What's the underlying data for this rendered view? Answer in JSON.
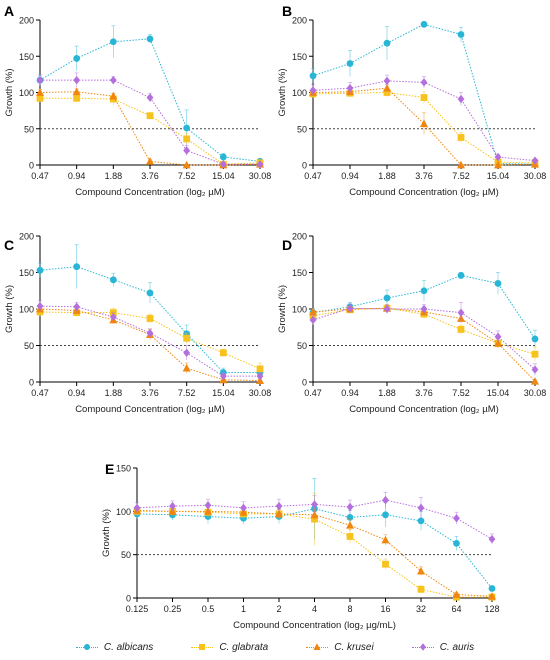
{
  "colors": {
    "albicans": "#29b6d6",
    "glabrata": "#f7c21b",
    "krusei": "#f0860f",
    "auris": "#b46fdd"
  },
  "legend": [
    {
      "key": "albicans",
      "label": "C. albicans",
      "marker": "circle"
    },
    {
      "key": "glabrata",
      "label": "C. glabrata",
      "marker": "square"
    },
    {
      "key": "krusei",
      "label": "C. krusei",
      "marker": "triangle"
    },
    {
      "key": "auris",
      "label": "C. auris",
      "marker": "diamond"
    }
  ],
  "chart_data": [
    {
      "panel": "A",
      "type": "line",
      "categories": [
        "0.47",
        "0.94",
        "1.88",
        "3.76",
        "7.52",
        "15.04",
        "30.08"
      ],
      "xlabel": "Compound Concentration (log₂ µM)",
      "ylabel": "Growth (%)",
      "ylim": [
        0,
        200
      ],
      "yticks": [
        0,
        50,
        100,
        150,
        200
      ],
      "reference_line": 50,
      "series": [
        {
          "key": "albicans",
          "name": "C. albicans",
          "values": [
            117,
            147,
            170,
            174,
            51,
            11,
            5
          ],
          "errors": [
            6,
            17,
            22,
            6,
            25,
            5,
            4
          ]
        },
        {
          "key": "glabrata",
          "name": "C. glabrata",
          "values": [
            92,
            92,
            91,
            68,
            36,
            1,
            3
          ],
          "errors": [
            5,
            5,
            8,
            4,
            8,
            2,
            2
          ]
        },
        {
          "key": "krusei",
          "name": "C. krusei",
          "values": [
            100,
            101,
            95,
            5,
            0,
            0,
            1
          ],
          "errors": [
            4,
            4,
            4,
            3,
            1,
            1,
            1
          ]
        },
        {
          "key": "auris",
          "name": "C. auris",
          "values": [
            117,
            117,
            117,
            93,
            20,
            1,
            1
          ],
          "errors": [
            8,
            10,
            5,
            6,
            7,
            2,
            1
          ]
        }
      ]
    },
    {
      "panel": "B",
      "type": "line",
      "categories": [
        "0.47",
        "0.94",
        "1.88",
        "3.76",
        "7.52",
        "15.04",
        "30.08"
      ],
      "xlabel": "Compound Concentration (log₂ µM)",
      "ylabel": "Growth (%)",
      "ylim": [
        0,
        200
      ],
      "yticks": [
        0,
        50,
        100,
        150,
        200
      ],
      "reference_line": 50,
      "series": [
        {
          "key": "albicans",
          "name": "C. albicans",
          "values": [
            123,
            140,
            168,
            194,
            180,
            2,
            1
          ],
          "errors": [
            10,
            18,
            23,
            4,
            10,
            2,
            1
          ]
        },
        {
          "key": "glabrata",
          "name": "C. glabrata",
          "values": [
            98,
            99,
            100,
            93,
            38,
            4,
            3
          ],
          "errors": [
            5,
            5,
            6,
            8,
            7,
            2,
            2
          ]
        },
        {
          "key": "krusei",
          "name": "C. krusei",
          "values": [
            100,
            101,
            106,
            57,
            0,
            0,
            1
          ],
          "errors": [
            4,
            4,
            5,
            15,
            1,
            1,
            1
          ]
        },
        {
          "key": "auris",
          "name": "C. auris",
          "values": [
            103,
            106,
            116,
            114,
            91,
            11,
            6
          ],
          "errors": [
            8,
            8,
            8,
            8,
            9,
            3,
            2
          ]
        }
      ]
    },
    {
      "panel": "C",
      "type": "line",
      "categories": [
        "0.47",
        "0.94",
        "1.88",
        "3.76",
        "7.52",
        "15.04",
        "30.08"
      ],
      "xlabel": "Compound Concentration (log₂ µM)",
      "ylabel": "Growth (%)",
      "ylim": [
        0,
        200
      ],
      "yticks": [
        0,
        50,
        100,
        150,
        200
      ],
      "reference_line": 50,
      "series": [
        {
          "key": "albicans",
          "name": "C. albicans",
          "values": [
            153,
            158,
            140,
            122,
            66,
            13,
            13
          ],
          "errors": [
            10,
            30,
            9,
            14,
            12,
            6,
            6
          ]
        },
        {
          "key": "glabrata",
          "name": "C. glabrata",
          "values": [
            96,
            95,
            95,
            87,
            60,
            40,
            18
          ],
          "errors": [
            6,
            5,
            6,
            6,
            7,
            5,
            8
          ]
        },
        {
          "key": "krusei",
          "name": "C. krusei",
          "values": [
            100,
            98,
            85,
            65,
            19,
            3,
            2
          ],
          "errors": [
            4,
            4,
            5,
            7,
            7,
            2,
            2
          ]
        },
        {
          "key": "auris",
          "name": "C. auris",
          "values": [
            104,
            103,
            89,
            67,
            40,
            8,
            8
          ],
          "errors": [
            8,
            6,
            6,
            6,
            10,
            4,
            4
          ]
        }
      ]
    },
    {
      "panel": "D",
      "type": "line",
      "categories": [
        "0.47",
        "0.94",
        "1.88",
        "3.76",
        "7.52",
        "15.04",
        "30.08"
      ],
      "xlabel": "Compound Concentration (log₂ µM)",
      "ylabel": "Growth (%)",
      "ylim": [
        0,
        200
      ],
      "yticks": [
        0,
        50,
        100,
        150,
        200
      ],
      "reference_line": 50,
      "series": [
        {
          "key": "albicans",
          "name": "C. albicans",
          "values": [
            95,
            103,
            115,
            125,
            146,
            135,
            59
          ],
          "errors": [
            6,
            6,
            11,
            14,
            4,
            15,
            12
          ]
        },
        {
          "key": "glabrata",
          "name": "C. glabrata",
          "values": [
            91,
            99,
            101,
            93,
            72,
            53,
            38
          ],
          "errors": [
            5,
            5,
            5,
            6,
            6,
            6,
            10
          ]
        },
        {
          "key": "krusei",
          "name": "C. krusei",
          "values": [
            96,
            100,
            101,
            96,
            87,
            53,
            1
          ],
          "errors": [
            4,
            4,
            4,
            5,
            5,
            7,
            1
          ]
        },
        {
          "key": "auris",
          "name": "C. auris",
          "values": [
            85,
            101,
            100,
            100,
            95,
            62,
            17
          ],
          "errors": [
            7,
            6,
            6,
            6,
            14,
            8,
            8
          ]
        }
      ]
    },
    {
      "panel": "E",
      "type": "line",
      "categories": [
        "0.125",
        "0.25",
        "0.5",
        "1",
        "2",
        "4",
        "8",
        "16",
        "32",
        "64",
        "128"
      ],
      "xlabel": "Compound Concentration (log₂ µg/mL)",
      "ylabel": "Growth (%)",
      "ylim": [
        0,
        150
      ],
      "yticks": [
        0,
        50,
        100,
        150
      ],
      "reference_line": 50,
      "series": [
        {
          "key": "albicans",
          "name": "C. albicans",
          "values": [
            97,
            96,
            94,
            92,
            94,
            103,
            93,
            96,
            89,
            63,
            11
          ],
          "errors": [
            6,
            6,
            8,
            7,
            8,
            35,
            8,
            14,
            11,
            8,
            3
          ]
        },
        {
          "key": "glabrata",
          "name": "C. glabrata",
          "values": [
            100,
            100,
            99,
            97,
            97,
            91,
            71,
            39,
            10,
            1,
            1
          ],
          "errors": [
            5,
            5,
            6,
            6,
            6,
            30,
            8,
            6,
            4,
            2,
            1
          ]
        },
        {
          "key": "krusei",
          "name": "C. krusei",
          "values": [
            101,
            100,
            100,
            99,
            97,
            96,
            84,
            67,
            31,
            4,
            2
          ],
          "errors": [
            4,
            4,
            5,
            5,
            5,
            6,
            7,
            6,
            5,
            2,
            1
          ]
        },
        {
          "key": "auris",
          "name": "C. auris",
          "values": [
            104,
            106,
            107,
            104,
            106,
            108,
            105,
            113,
            104,
            92,
            68
          ],
          "errors": [
            6,
            6,
            7,
            7,
            8,
            10,
            8,
            9,
            12,
            7,
            6
          ]
        }
      ]
    }
  ]
}
